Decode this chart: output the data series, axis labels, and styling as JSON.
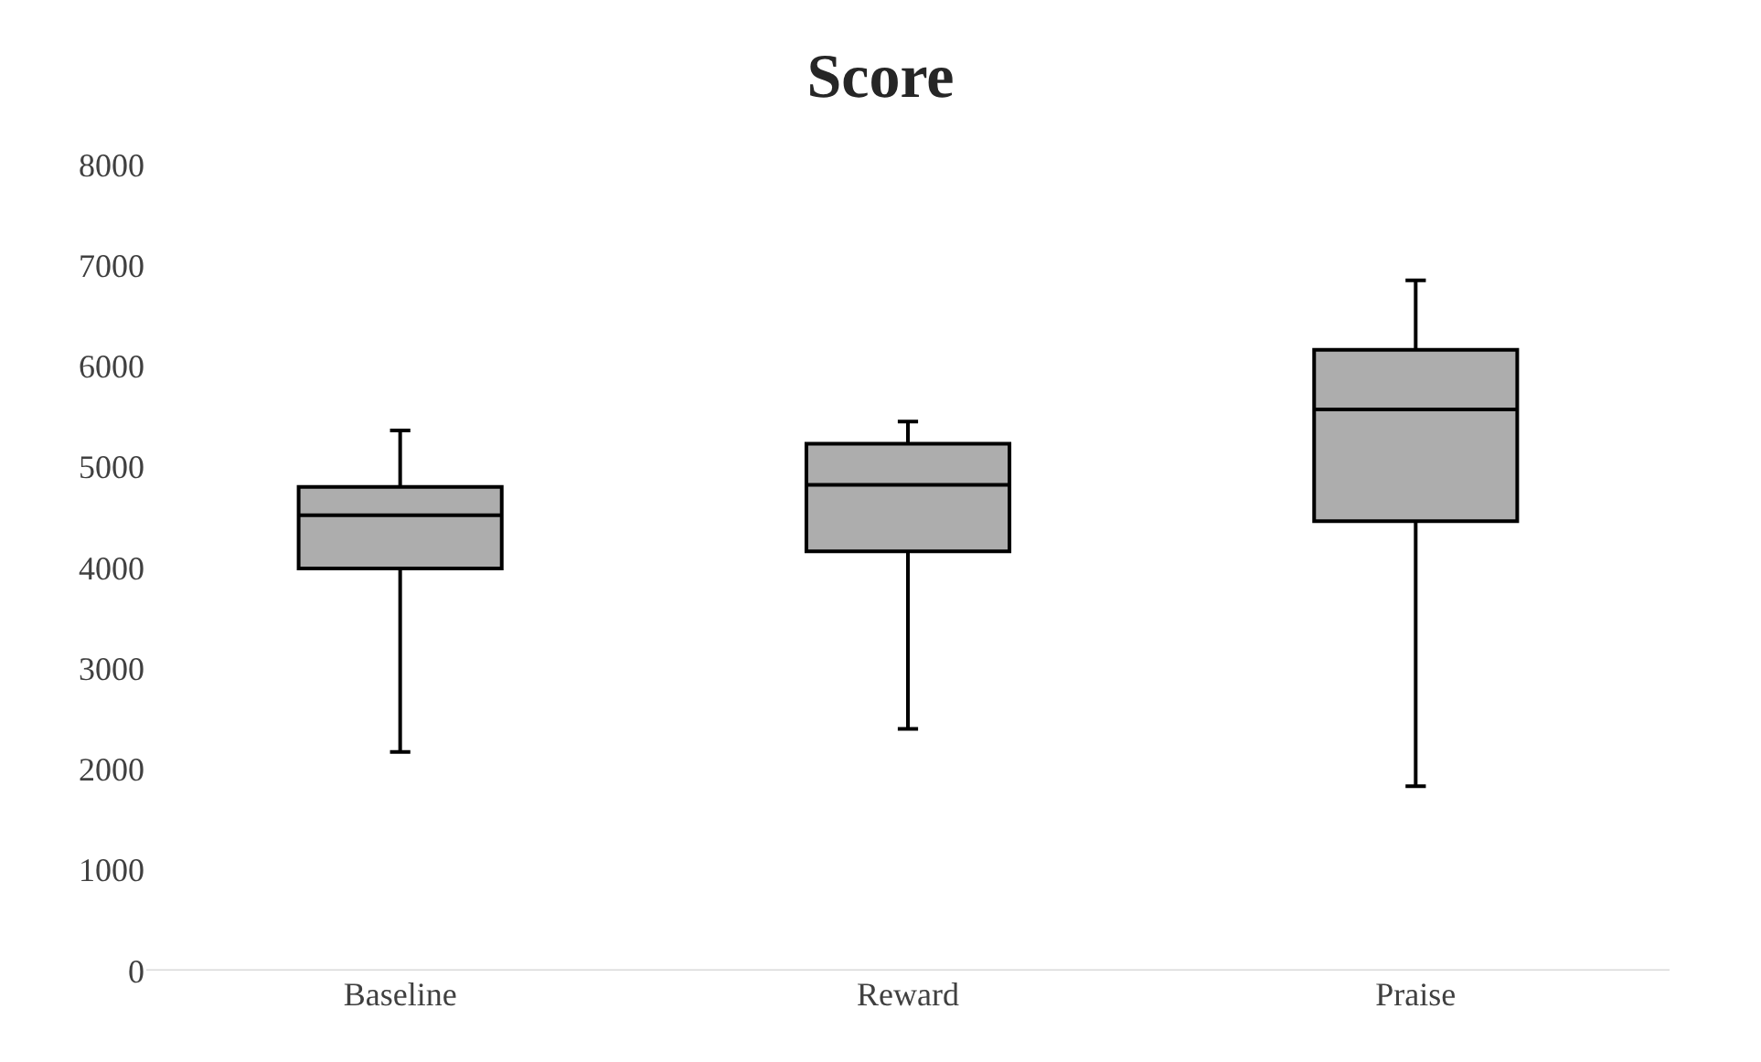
{
  "chart_data": {
    "type": "box",
    "title": "Score",
    "categories": [
      "Baseline",
      "Reward",
      "Praise"
    ],
    "boxes": [
      {
        "low": 2170,
        "q1": 3990,
        "median": 4520,
        "q3": 4800,
        "high": 5360
      },
      {
        "low": 2400,
        "q1": 4160,
        "median": 4820,
        "q3": 5230,
        "high": 5450
      },
      {
        "low": 1830,
        "q1": 4460,
        "median": 5570,
        "q3": 6160,
        "high": 6850
      }
    ],
    "color": "#adadad",
    "ylim": [
      0,
      8000
    ],
    "yticks": [
      0,
      1000,
      2000,
      3000,
      4000,
      5000,
      6000,
      7000,
      8000
    ]
  }
}
